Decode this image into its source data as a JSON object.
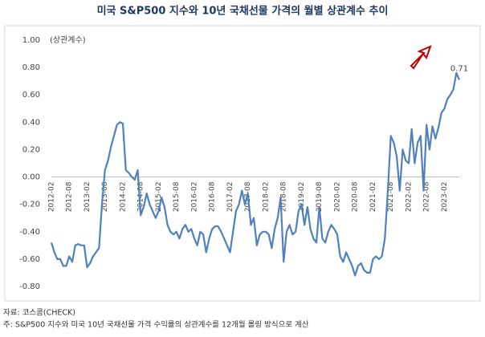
{
  "chart_data": {
    "type": "line",
    "title": "미국 S&P500 지수와 10년 국채선물 가격의 월별 상관계수 추이",
    "y_label": "(상관계수)",
    "source": "자료: 코스콤(CHECK)",
    "note": "주: S&P500 지수와 미국 10년 국채선물 가격 수익률의 상관계수를 12개월 롤링 방식으로 계산",
    "categories": [
      "2012-02",
      null,
      null,
      null,
      null,
      null,
      "2012-08",
      null,
      null,
      null,
      null,
      null,
      "2013-02",
      null,
      null,
      null,
      null,
      null,
      "2013-08",
      null,
      null,
      null,
      null,
      null,
      "2014-02",
      null,
      null,
      null,
      null,
      null,
      "2014-08",
      null,
      null,
      null,
      null,
      null,
      "2015-02",
      null,
      null,
      null,
      null,
      null,
      "2015-08",
      null,
      null,
      null,
      null,
      null,
      "2016-02",
      null,
      null,
      null,
      null,
      null,
      "2016-08",
      null,
      null,
      null,
      null,
      null,
      "2017-02",
      null,
      null,
      null,
      null,
      null,
      "2017-08",
      null,
      null,
      null,
      null,
      null,
      "2018-02",
      null,
      null,
      null,
      null,
      null,
      "2018-08",
      null,
      null,
      null,
      null,
      null,
      "2019-02",
      null,
      null,
      null,
      null,
      null,
      "2019-08",
      null,
      null,
      null,
      null,
      null,
      "2020-02",
      null,
      null,
      null,
      null,
      null,
      "2020-08",
      null,
      null,
      null,
      null,
      null,
      "2021-02",
      null,
      null,
      null,
      null,
      null,
      "2021-08",
      null,
      null,
      null,
      null,
      null,
      "2022-02",
      null,
      null,
      null,
      null,
      null,
      "2022-08",
      null,
      null,
      null,
      null,
      null,
      "2023-02",
      null,
      null,
      null,
      null,
      null
    ],
    "series": [
      {
        "color": "#4f81bd",
        "values": [
          -0.48,
          -0.55,
          -0.6,
          -0.6,
          -0.65,
          -0.65,
          -0.58,
          -0.62,
          -0.5,
          -0.49,
          -0.5,
          -0.5,
          -0.66,
          -0.63,
          -0.58,
          -0.55,
          -0.52,
          -0.2,
          0.05,
          0.12,
          0.22,
          0.3,
          0.38,
          0.4,
          0.39,
          0.05,
          0.03,
          0.0,
          -0.02,
          0.05,
          -0.28,
          -0.22,
          -0.12,
          -0.2,
          -0.25,
          -0.3,
          -0.25,
          -0.15,
          -0.22,
          -0.35,
          -0.4,
          -0.42,
          -0.4,
          -0.45,
          -0.38,
          -0.35,
          -0.4,
          -0.38,
          -0.45,
          -0.5,
          -0.4,
          -0.42,
          -0.55,
          -0.45,
          -0.38,
          -0.36,
          -0.36,
          -0.4,
          -0.45,
          -0.5,
          -0.55,
          -0.4,
          -0.25,
          -0.2,
          -0.1,
          -0.2,
          -0.12,
          -0.35,
          -0.3,
          -0.5,
          -0.42,
          -0.4,
          -0.4,
          -0.42,
          -0.52,
          -0.38,
          -0.3,
          -0.15,
          -0.62,
          -0.4,
          -0.35,
          -0.42,
          -0.4,
          -0.25,
          -0.2,
          -0.35,
          -0.22,
          -0.38,
          -0.45,
          -0.48,
          -0.22,
          -0.45,
          -0.48,
          -0.4,
          -0.35,
          -0.38,
          -0.42,
          -0.58,
          -0.62,
          -0.55,
          -0.6,
          -0.65,
          -0.72,
          -0.65,
          -0.63,
          -0.68,
          -0.7,
          -0.7,
          -0.6,
          -0.58,
          -0.6,
          -0.58,
          -0.45,
          -0.1,
          0.3,
          0.25,
          0.15,
          -0.1,
          0.2,
          0.12,
          0.1,
          0.35,
          0.1,
          0.25,
          0.3,
          -0.1,
          0.38,
          0.2,
          0.37,
          0.28,
          0.36,
          0.47,
          0.5,
          0.57,
          0.6,
          0.64,
          0.76,
          0.71
        ]
      }
    ],
    "ylim": [
      -0.8,
      1.0
    ],
    "yticks": [
      {
        "value": -0.8,
        "label": "-0.80"
      },
      {
        "value": -0.6,
        "label": "-0.60"
      },
      {
        "value": -0.4,
        "label": "-0.40"
      },
      {
        "value": -0.2,
        "label": "-0.20"
      },
      {
        "value": 0,
        "label": "0.00"
      },
      {
        "value": 0.2,
        "label": "0.20"
      },
      {
        "value": 0.4,
        "label": "0.40"
      },
      {
        "value": 0.6,
        "label": "0.60"
      },
      {
        "value": 0.8,
        "label": "0.80"
      },
      {
        "value": 1.0,
        "label": "1.00"
      }
    ],
    "grid": false
  }
}
